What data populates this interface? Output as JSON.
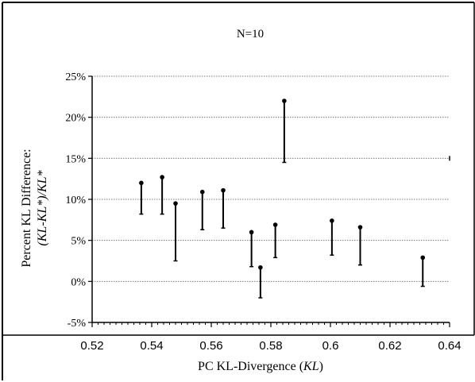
{
  "chart_data": {
    "type": "scatter",
    "title": "N=10",
    "xlabel": "PC KL-Divergence (KL)",
    "xlabel_parts": [
      "PC KL-Divergence (",
      "KL",
      ")"
    ],
    "ylabel_line1": "Percent KL Difference:",
    "ylabel_line2_parts": [
      "(KL-KL*)/KL*"
    ],
    "xlim": [
      0.52,
      0.64
    ],
    "ylim": [
      -5,
      25
    ],
    "x_ticks": [
      {
        "value": 0.52,
        "label": "0.52"
      },
      {
        "value": 0.54,
        "label": "0.54"
      },
      {
        "value": 0.56,
        "label": "0.56"
      },
      {
        "value": 0.58,
        "label": "0.58"
      },
      {
        "value": 0.6,
        "label": "0.6"
      },
      {
        "value": 0.62,
        "label": "0.62"
      },
      {
        "value": 0.64,
        "label": "0.64"
      }
    ],
    "y_ticks": [
      {
        "value": 25,
        "label": "25%"
      },
      {
        "value": 20,
        "label": "20%"
      },
      {
        "value": 15,
        "label": "15%"
      },
      {
        "value": 10,
        "label": "10%"
      },
      {
        "value": 5,
        "label": "5%"
      },
      {
        "value": 0,
        "label": "0%"
      },
      {
        "value": -5,
        "label": "-5%"
      }
    ],
    "grid": "horizontal dotted",
    "points": [
      {
        "x": 0.5365,
        "top": 12.0,
        "bottom": 8.2
      },
      {
        "x": 0.5435,
        "top": 12.7,
        "bottom": 8.2
      },
      {
        "x": 0.548,
        "top": 9.5,
        "bottom": 2.5
      },
      {
        "x": 0.557,
        "top": 10.9,
        "bottom": 6.3
      },
      {
        "x": 0.564,
        "top": 11.1,
        "bottom": 6.5
      },
      {
        "x": 0.5735,
        "top": 6.0,
        "bottom": 1.8
      },
      {
        "x": 0.5765,
        "top": 1.7,
        "bottom": -2.0
      },
      {
        "x": 0.5815,
        "top": 6.9,
        "bottom": 2.9
      },
      {
        "x": 0.5845,
        "top": 22.0,
        "bottom": 14.5
      },
      {
        "x": 0.6005,
        "top": 7.4,
        "bottom": 3.2
      },
      {
        "x": 0.61,
        "top": 6.6,
        "bottom": 2.0
      },
      {
        "x": 0.631,
        "top": 2.9,
        "bottom": -0.6
      }
    ],
    "colors": {
      "line": "#000000",
      "grid": "#7a7a7a",
      "background": "#ffffff"
    }
  }
}
